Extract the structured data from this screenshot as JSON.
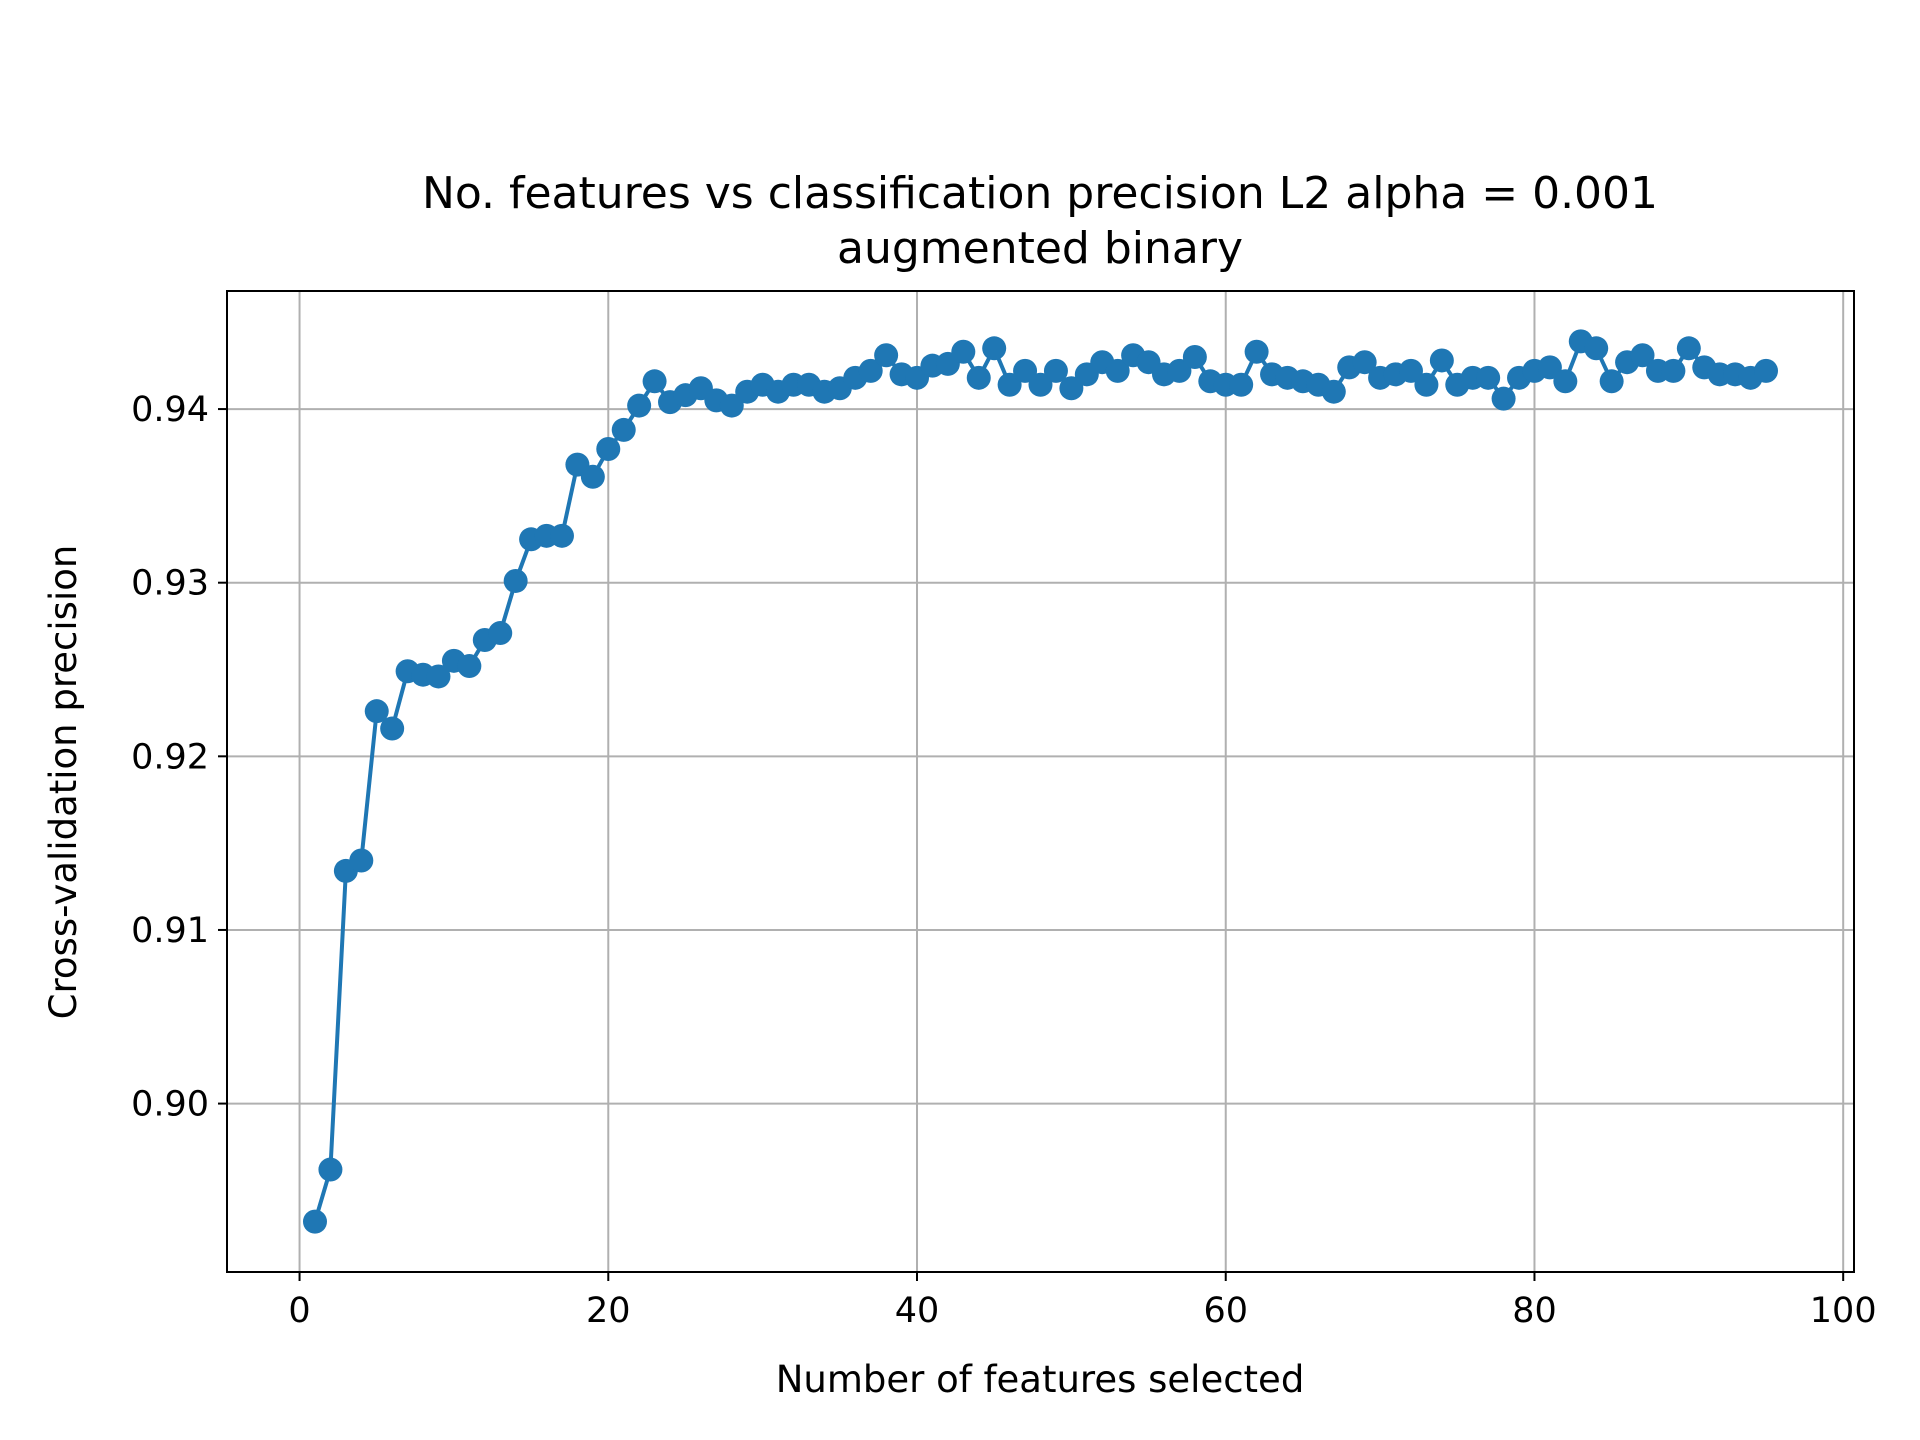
{
  "chart_data": {
    "type": "line",
    "title": "No. features vs classification precision L2 alpha = 0.001",
    "subtitle": "augmented binary",
    "xlabel": "Number of features selected",
    "ylabel": "Cross-validation precision",
    "xlim": [
      -4.7,
      100.7
    ],
    "ylim": [
      0.8903,
      0.9468
    ],
    "xticks": [
      0,
      20,
      40,
      60,
      80,
      100
    ],
    "xtick_labels": [
      "0",
      "20",
      "40",
      "60",
      "80",
      "100"
    ],
    "yticks": [
      0.9,
      0.91,
      0.92,
      0.93,
      0.94
    ],
    "ytick_labels": [
      "0.90",
      "0.91",
      "0.92",
      "0.93",
      "0.94"
    ],
    "grid": true,
    "marker": "circle",
    "color": "#1f77b4",
    "series": [
      {
        "x": [
          1,
          2,
          3,
          4,
          5,
          6,
          7,
          8,
          9,
          10,
          11,
          12,
          13,
          14,
          15,
          16,
          17,
          18,
          19,
          20,
          21,
          22,
          23,
          24,
          25,
          26,
          27,
          28,
          29,
          30,
          31,
          32,
          33,
          34,
          35,
          36,
          37,
          38,
          39,
          40,
          41,
          42,
          43,
          44,
          45,
          46,
          47,
          48,
          49,
          50,
          51,
          52,
          53,
          54,
          55,
          56,
          57,
          58,
          59,
          60,
          61,
          62,
          63,
          64,
          65,
          66,
          67,
          68,
          69,
          70,
          71,
          72,
          73,
          74,
          75,
          76,
          77,
          78,
          79,
          80,
          81,
          82,
          83,
          84,
          85,
          86,
          87,
          88,
          89,
          90,
          91,
          92,
          93,
          94,
          95
        ],
        "y": [
          0.8932,
          0.8962,
          0.9134,
          0.914,
          0.9226,
          0.9216,
          0.9249,
          0.9247,
          0.9246,
          0.9255,
          0.9252,
          0.9267,
          0.9271,
          0.9301,
          0.9325,
          0.9327,
          0.9327,
          0.9368,
          0.9361,
          0.9377,
          0.9388,
          0.9402,
          0.9416,
          0.9404,
          0.9408,
          0.9412,
          0.9405,
          0.9402,
          0.941,
          0.9414,
          0.941,
          0.9414,
          0.9414,
          0.941,
          0.9412,
          0.9418,
          0.9422,
          0.9431,
          0.942,
          0.9418,
          0.9425,
          0.9426,
          0.9433,
          0.9418,
          0.9435,
          0.9414,
          0.9422,
          0.9414,
          0.9422,
          0.9412,
          0.942,
          0.9427,
          0.9422,
          0.9431,
          0.9427,
          0.942,
          0.9422,
          0.943,
          0.9416,
          0.9414,
          0.9414,
          0.9433,
          0.942,
          0.9418,
          0.9416,
          0.9414,
          0.941,
          0.9424,
          0.9427,
          0.9418,
          0.942,
          0.9422,
          0.9414,
          0.9428,
          0.9414,
          0.9418,
          0.9418,
          0.9406,
          0.9418,
          0.9422,
          0.9424,
          0.9416,
          0.9439,
          0.9435,
          0.9416,
          0.9427,
          0.9431,
          0.9422,
          0.9422,
          0.9435,
          0.9424,
          0.942,
          0.942,
          0.9418,
          0.9422
        ]
      }
    ]
  }
}
